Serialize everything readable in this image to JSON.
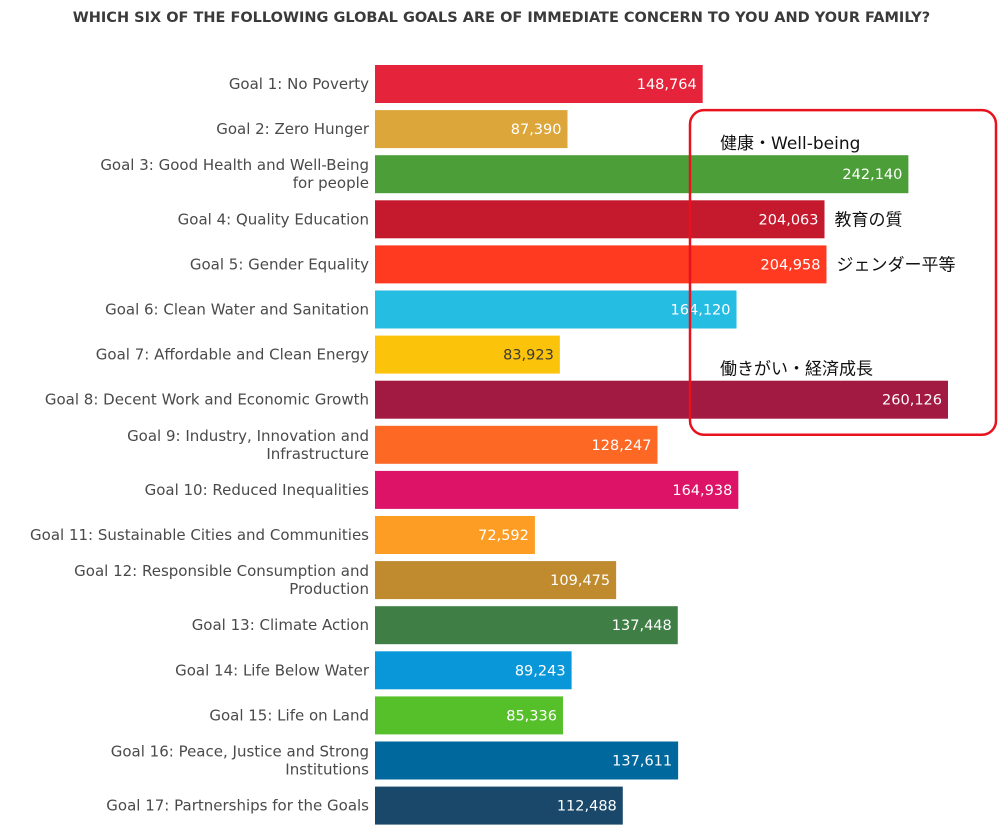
{
  "chart_data": {
    "type": "bar",
    "orientation": "horizontal",
    "title": "WHICH SIX OF THE FOLLOWING GLOBAL GOALS ARE OF IMMEDIATE CONCERN TO YOU AND YOUR FAMILY?",
    "categories": [
      [
        "Goal 1: No Poverty"
      ],
      [
        "Goal 2: Zero Hunger"
      ],
      [
        "Goal 3: Good Health and Well-Being",
        "for people"
      ],
      [
        "Goal 4: Quality Education"
      ],
      [
        "Goal 5: Gender Equality"
      ],
      [
        "Goal 6: Clean Water and Sanitation"
      ],
      [
        "Goal 7: Affordable and Clean Energy"
      ],
      [
        "Goal 8: Decent Work and Economic Growth"
      ],
      [
        "Goal 9: Industry, Innovation and",
        "Infrastructure"
      ],
      [
        "Goal 10: Reduced Inequalities"
      ],
      [
        "Goal 11: Sustainable Cities and Communities"
      ],
      [
        "Goal 12: Responsible Consumption and",
        "Production"
      ],
      [
        "Goal 13: Climate Action"
      ],
      [
        "Goal 14: Life Below Water"
      ],
      [
        "Goal 15: Life on Land"
      ],
      [
        "Goal 16: Peace, Justice and Strong",
        "Institutions"
      ],
      [
        "Goal 17: Partnerships for the Goals"
      ]
    ],
    "values": [
      148764,
      87390,
      242140,
      204063,
      204958,
      164120,
      83923,
      260126,
      128247,
      164938,
      72592,
      109475,
      137448,
      89243,
      85336,
      137611,
      112488
    ],
    "value_labels": [
      "148,764",
      "87,390",
      "242,140",
      "204,063",
      "204,958",
      "164,120",
      "83,923",
      "260,126",
      "128,247",
      "164,938",
      "72,592",
      "109,475",
      "137,448",
      "89,243",
      "85,336",
      "137,611",
      "112,488"
    ],
    "colors": [
      "#e5243b",
      "#dda63a",
      "#4c9f38",
      "#c5192d",
      "#ff3a21",
      "#26bde2",
      "#fcc30b",
      "#a21942",
      "#fd6925",
      "#dd1367",
      "#fd9d24",
      "#bf8b2e",
      "#3f7e44",
      "#0a97d9",
      "#56c02b",
      "#00689d",
      "#19486a"
    ],
    "xlim": [
      0,
      260126
    ],
    "grid": false,
    "legend": "none",
    "annotations": [
      {
        "text": "健康・Well-being",
        "goal_index": 2
      },
      {
        "text": "教育の質",
        "goal_index": 3
      },
      {
        "text": "ジェンダー平等",
        "goal_index": 4
      },
      {
        "text": "働きがい・経済成長",
        "goal_index": 7
      }
    ],
    "highlight_color": "#e8121e"
  }
}
